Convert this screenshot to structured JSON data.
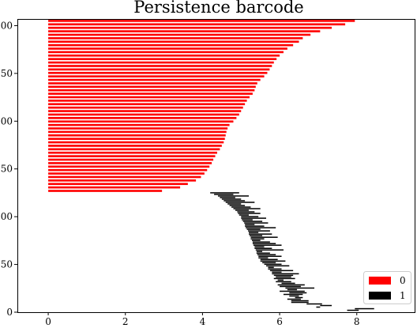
{
  "chart_data": {
    "type": "bar",
    "orientation": "horizontal",
    "title": "Persistence barcode",
    "xlabel": "",
    "ylabel": "",
    "xlim": [
      -0.8,
      9.5
    ],
    "ylim": [
      0,
      307
    ],
    "xticks": [
      0,
      2,
      4,
      6,
      8
    ],
    "yticks": [
      0,
      50,
      100,
      150,
      200,
      250,
      300
    ],
    "legend_position": "bottom-right",
    "series": [
      {
        "name": "0",
        "color": "#ff0000",
        "bars": [
          {
            "birth": 0,
            "death": 2.95
          },
          {
            "birth": 0,
            "death": 3.42
          },
          {
            "birth": 0,
            "death": 3.62
          },
          {
            "birth": 0,
            "death": 3.83
          },
          {
            "birth": 0,
            "death": 3.96
          },
          {
            "birth": 0,
            "death": 4.05
          },
          {
            "birth": 0,
            "death": 4.12
          },
          {
            "birth": 0,
            "death": 4.18
          },
          {
            "birth": 0,
            "death": 4.24
          },
          {
            "birth": 0,
            "death": 4.28
          },
          {
            "birth": 0,
            "death": 4.33
          },
          {
            "birth": 0,
            "death": 4.38
          },
          {
            "birth": 0,
            "death": 4.45
          },
          {
            "birth": 0,
            "death": 4.5
          },
          {
            "birth": 0,
            "death": 4.55
          },
          {
            "birth": 0,
            "death": 4.58
          },
          {
            "birth": 0,
            "death": 4.6
          },
          {
            "birth": 0,
            "death": 4.62
          },
          {
            "birth": 0,
            "death": 4.65
          },
          {
            "birth": 0,
            "death": 4.7
          },
          {
            "birth": 0,
            "death": 4.8
          },
          {
            "birth": 0,
            "death": 4.88
          },
          {
            "birth": 0,
            "death": 4.95
          },
          {
            "birth": 0,
            "death": 5.0
          },
          {
            "birth": 0,
            "death": 5.05
          },
          {
            "birth": 0,
            "death": 5.1
          },
          {
            "birth": 0,
            "death": 5.15
          },
          {
            "birth": 0,
            "death": 5.22
          },
          {
            "birth": 0,
            "death": 5.3
          },
          {
            "birth": 0,
            "death": 5.35
          },
          {
            "birth": 0,
            "death": 5.38
          },
          {
            "birth": 0,
            "death": 5.42
          },
          {
            "birth": 0,
            "death": 5.5
          },
          {
            "birth": 0,
            "death": 5.6
          },
          {
            "birth": 0,
            "death": 5.68
          },
          {
            "birth": 0,
            "death": 5.74
          },
          {
            "birth": 0,
            "death": 5.8
          },
          {
            "birth": 0,
            "death": 5.85
          },
          {
            "birth": 0,
            "death": 5.92
          },
          {
            "birth": 0,
            "death": 6.0
          },
          {
            "birth": 0,
            "death": 6.1
          },
          {
            "birth": 0,
            "death": 6.2
          },
          {
            "birth": 0,
            "death": 6.35
          },
          {
            "birth": 0,
            "death": 6.5
          },
          {
            "birth": 0,
            "death": 6.6
          },
          {
            "birth": 0,
            "death": 6.8
          },
          {
            "birth": 0,
            "death": 7.05
          },
          {
            "birth": 0,
            "death": 7.35
          },
          {
            "birth": 0,
            "death": 7.7
          },
          {
            "birth": 0,
            "death": 7.95
          }
        ]
      },
      {
        "name": "1",
        "color": "#000000",
        "bars": [
          {
            "birth": 7.75,
            "death": 8.05
          },
          {
            "birth": 7.95,
            "death": 8.45
          },
          {
            "birth": 6.95,
            "death": 7.05
          },
          {
            "birth": 7.05,
            "death": 7.35
          },
          {
            "birth": 6.7,
            "death": 7.1
          },
          {
            "birth": 6.3,
            "death": 6.75
          },
          {
            "birth": 6.3,
            "death": 6.75
          },
          {
            "birth": 6.2,
            "death": 6.55
          },
          {
            "birth": 6.4,
            "death": 6.6
          },
          {
            "birth": 6.25,
            "death": 6.5
          },
          {
            "birth": 6.1,
            "death": 6.6
          },
          {
            "birth": 6.25,
            "death": 6.7
          },
          {
            "birth": 6.0,
            "death": 6.65
          },
          {
            "birth": 6.2,
            "death": 6.45
          },
          {
            "birth": 6.15,
            "death": 6.9
          },
          {
            "birth": 6.0,
            "death": 6.55
          },
          {
            "birth": 5.95,
            "death": 6.65
          },
          {
            "birth": 6.05,
            "death": 6.4
          },
          {
            "birth": 5.9,
            "death": 6.3
          },
          {
            "birth": 5.95,
            "death": 6.1
          },
          {
            "birth": 5.85,
            "death": 6.4
          },
          {
            "birth": 5.9,
            "death": 6.3
          },
          {
            "birth": 5.85,
            "death": 6.35
          },
          {
            "birth": 5.8,
            "death": 6.5
          },
          {
            "birth": 5.8,
            "death": 6.05
          },
          {
            "birth": 5.75,
            "death": 6.35
          },
          {
            "birth": 5.7,
            "death": 6.05
          },
          {
            "birth": 5.7,
            "death": 5.85
          },
          {
            "birth": 5.65,
            "death": 6.25
          },
          {
            "birth": 5.6,
            "death": 6.05
          },
          {
            "birth": 5.55,
            "death": 5.9
          },
          {
            "birth": 5.5,
            "death": 6.15
          },
          {
            "birth": 5.5,
            "death": 5.95
          },
          {
            "birth": 5.45,
            "death": 5.7
          },
          {
            "birth": 5.45,
            "death": 6.05
          },
          {
            "birth": 5.42,
            "death": 5.9
          },
          {
            "birth": 5.4,
            "death": 5.75
          },
          {
            "birth": 5.4,
            "death": 5.55
          },
          {
            "birth": 5.38,
            "death": 6.1
          },
          {
            "birth": 5.35,
            "death": 5.8
          },
          {
            "birth": 5.35,
            "death": 5.6
          },
          {
            "birth": 5.32,
            "death": 6.05
          },
          {
            "birth": 5.3,
            "death": 5.9
          },
          {
            "birth": 5.3,
            "death": 5.75
          },
          {
            "birth": 5.28,
            "death": 5.5
          },
          {
            "birth": 5.25,
            "death": 5.6
          },
          {
            "birth": 5.25,
            "death": 5.95
          },
          {
            "birth": 5.22,
            "death": 5.55
          },
          {
            "birth": 5.2,
            "death": 5.8
          },
          {
            "birth": 5.2,
            "death": 5.45
          },
          {
            "birth": 5.18,
            "death": 5.75
          },
          {
            "birth": 5.15,
            "death": 5.5
          },
          {
            "birth": 5.12,
            "death": 5.9
          },
          {
            "birth": 5.1,
            "death": 5.6
          },
          {
            "birth": 5.1,
            "death": 5.35
          },
          {
            "birth": 5.08,
            "death": 5.7
          },
          {
            "birth": 5.05,
            "death": 5.55
          },
          {
            "birth": 5.02,
            "death": 5.3
          },
          {
            "birth": 5.0,
            "death": 5.65
          },
          {
            "birth": 5.0,
            "death": 5.45
          },
          {
            "birth": 4.95,
            "death": 5.2
          },
          {
            "birth": 4.92,
            "death": 5.5
          },
          {
            "birth": 4.9,
            "death": 5.35
          },
          {
            "birth": 4.85,
            "death": 5.2
          },
          {
            "birth": 4.8,
            "death": 5.5
          },
          {
            "birth": 4.75,
            "death": 5.25
          },
          {
            "birth": 4.7,
            "death": 5.1
          },
          {
            "birth": 4.65,
            "death": 5.0
          },
          {
            "birth": 4.6,
            "death": 5.35
          },
          {
            "birth": 4.55,
            "death": 5.1
          },
          {
            "birth": 4.5,
            "death": 5.0
          },
          {
            "birth": 4.45,
            "death": 4.85
          },
          {
            "birth": 4.4,
            "death": 5.2
          },
          {
            "birth": 4.3,
            "death": 4.8
          },
          {
            "birth": 4.2,
            "death": 4.95
          }
        ]
      }
    ]
  }
}
